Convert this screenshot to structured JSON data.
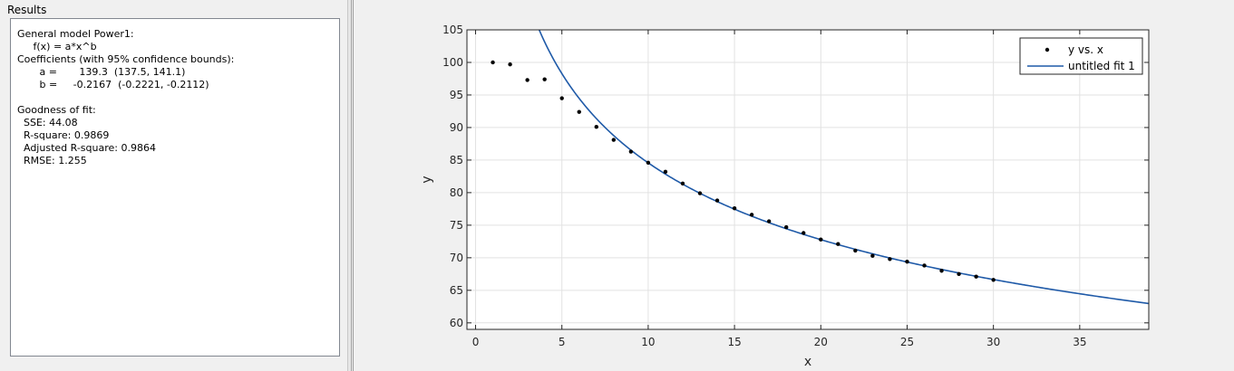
{
  "results": {
    "title": "Results",
    "lines": [
      "General model Power1:",
      "     f(x) = a*x^b",
      "Coefficients (with 95% confidence bounds):",
      "       a =       139.3  (137.5, 141.1)",
      "       b =     -0.2167  (-0.2221, -0.2112)",
      "",
      "Goodness of fit:",
      "  SSE: 44.08",
      "  R-square: 0.9869",
      "  Adjusted R-square: 0.9864",
      "  RMSE: 1.255"
    ]
  },
  "chart_data": {
    "type": "scatter",
    "xlabel": "x",
    "ylabel": "y",
    "xlim": [
      -0.5,
      39
    ],
    "ylim": [
      59,
      105
    ],
    "xticks": [
      0,
      5,
      10,
      15,
      20,
      25,
      30,
      35
    ],
    "yticks": [
      60,
      65,
      70,
      75,
      80,
      85,
      90,
      95,
      100,
      105
    ],
    "grid": true,
    "legend_position": "top-right",
    "series": [
      {
        "name": "y vs. x",
        "kind": "points",
        "color": "#000000",
        "x": [
          1,
          2,
          3,
          4,
          5,
          6,
          7,
          8,
          9,
          10,
          11,
          12,
          13,
          14,
          15,
          16,
          17,
          18,
          19,
          20,
          21,
          22,
          23,
          24,
          25,
          26,
          27,
          28,
          29,
          30
        ],
        "y": [
          100.0,
          99.7,
          97.3,
          97.4,
          94.5,
          92.4,
          90.1,
          88.1,
          86.3,
          84.6,
          83.2,
          81.4,
          79.9,
          78.8,
          77.6,
          76.6,
          75.6,
          74.7,
          73.8,
          72.8,
          72.1,
          71.1,
          70.3,
          69.8,
          69.4,
          68.8,
          68.0,
          67.5,
          67.1,
          66.6
        ]
      },
      {
        "name": "untitled fit 1",
        "kind": "fit",
        "color": "#1f5aa8",
        "model": {
          "a": 139.3,
          "b": -0.2167
        }
      }
    ]
  }
}
